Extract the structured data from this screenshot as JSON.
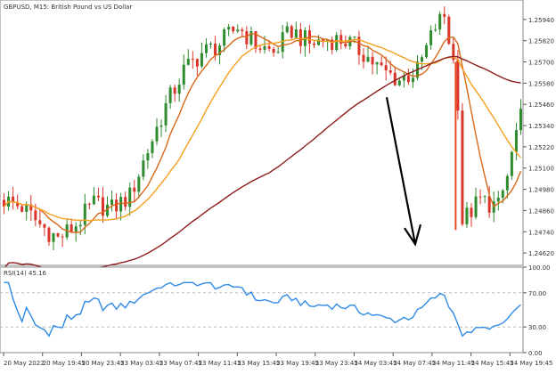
{
  "chart_data": [
    {
      "type": "candlestick",
      "title": "GBPUSD, M15:  British Pound vs US Dollar",
      "ylim": [
        1.2455,
        1.2605
      ],
      "y_ticks": [
        "1.25940",
        "1.25820",
        "1.25700",
        "1.25580",
        "1.25460",
        "1.25340",
        "1.25220",
        "1.25100",
        "1.24980",
        "1.24860",
        "1.24740",
        "1.24620"
      ],
      "candles_count": 116,
      "overlays": [
        {
          "name": "MA-short",
          "color": "#d9691a"
        },
        {
          "name": "MA-mid",
          "color": "#f5a020"
        },
        {
          "name": "MA-long",
          "color": "#8e1c1c"
        }
      ],
      "annotations": [
        {
          "type": "arrow",
          "color": "#000000",
          "from": {
            "x": "24 May 03:45",
            "y": 1.255
          },
          "to": {
            "x": "24 May 07:45",
            "y": 1.2467
          }
        },
        {
          "type": "vertical-line",
          "color": "#e8481c",
          "at": "24 May 09:45"
        }
      ],
      "candle_colors": {
        "up": "#2e8b2e",
        "down": "#d9352a"
      }
    },
    {
      "type": "line",
      "title": "RSI(14) 45.16",
      "ylim": [
        0,
        100
      ],
      "y_ticks": [
        "100.00",
        "70.00",
        "30.00",
        "0.00"
      ],
      "levels": [
        70,
        30
      ],
      "line_color": "#2e8ae6"
    }
  ],
  "x_axis": {
    "tick_labels": [
      "20 May 2022",
      "20 May 19:45",
      "20 May 23:45",
      "23 May 03:45",
      "23 May 07:45",
      "23 May 11:45",
      "23 May 15:45",
      "23 May 19:45",
      "23 May 23:45",
      "24 May 03:45",
      "24 May 07:45",
      "24 May 11:45",
      "24 May 15:45",
      "24 May 19:45"
    ]
  },
  "colors": {
    "grid": "#cccccc",
    "axis": "#555555"
  }
}
